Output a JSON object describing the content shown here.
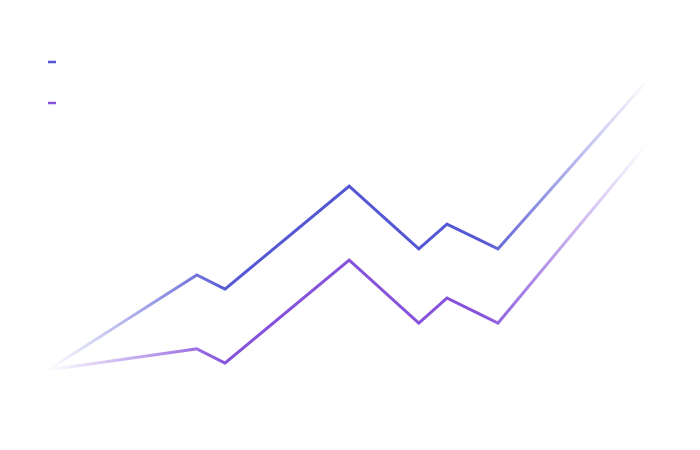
{
  "chart_data": {
    "type": "line",
    "x": [
      0,
      24.8,
      29.5,
      50.2,
      61.8,
      66.5,
      75,
      100
    ],
    "series": [
      {
        "color": "#5457d3",
        "values": [
          9.1,
          37.9,
          33.6,
          64.8,
          45.8,
          53.3,
          45.8,
          97
        ]
      },
      {
        "color": "#8652dc",
        "values": [
          9.1,
          15.5,
          11.2,
          42.4,
          23.3,
          30.9,
          23.3,
          77.9
        ]
      }
    ],
    "xlim": [
      0,
      100
    ],
    "ylim": [
      0,
      100
    ],
    "legend": "upper left",
    "fade": true
  }
}
